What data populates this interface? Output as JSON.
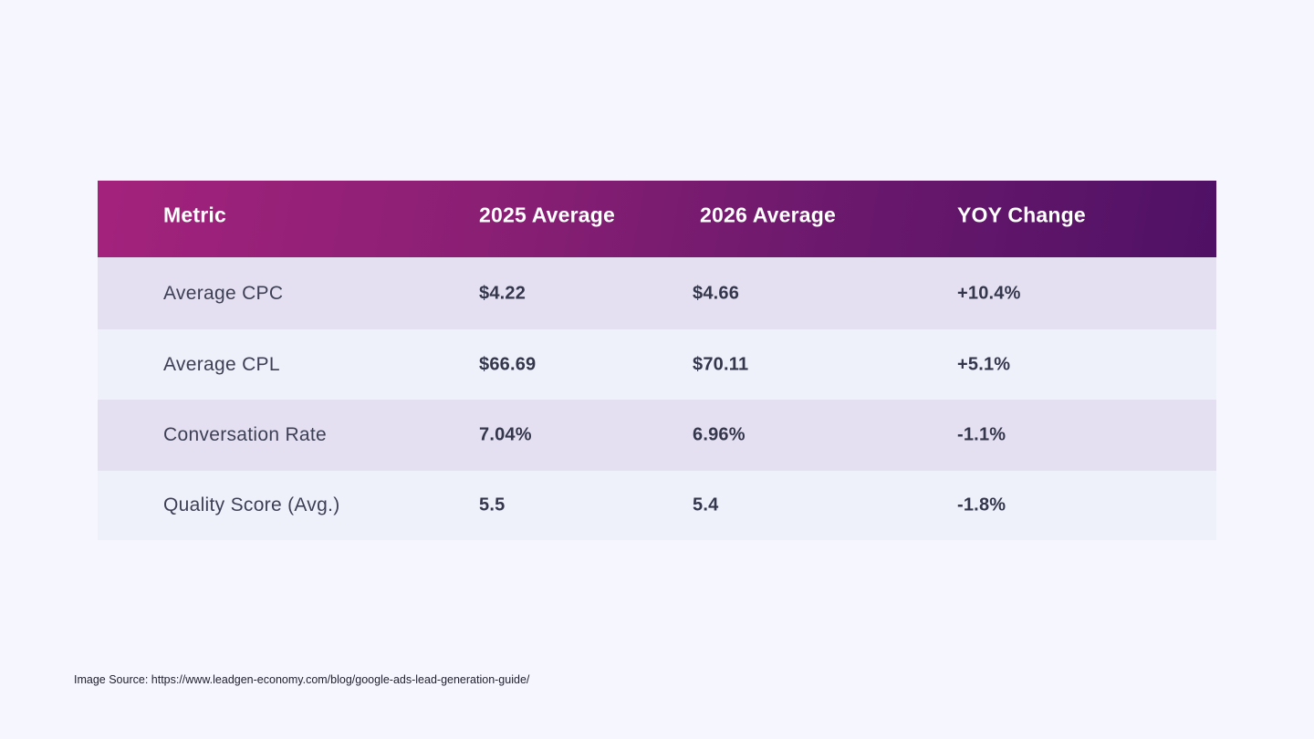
{
  "chart_data": {
    "type": "table",
    "columns": [
      "Metric",
      "2025 Average",
      "2026 Average",
      "YOY Change"
    ],
    "rows": [
      {
        "metric": "Average CPC",
        "y2025": "$4.22",
        "y2026": "$4.66",
        "yoy": "+10.4%"
      },
      {
        "metric": "Average CPL",
        "y2025": "$66.69",
        "y2026": "$70.11",
        "yoy": "+5.1%"
      },
      {
        "metric": "Conversation Rate",
        "y2025": "7.04%",
        "y2026": "6.96%",
        "yoy": "-1.1%"
      },
      {
        "metric": "Quality Score (Avg.)",
        "y2025": "5.5",
        "y2026": "5.4",
        "yoy": "-1.8%"
      }
    ],
    "colors": {
      "header_gradient_start": "#a3227c",
      "header_gradient_end": "#4f1165",
      "row_shade_a": "#e4e0f1",
      "row_shade_b": "#eef0fa",
      "background": "#f5f6fe"
    }
  },
  "source": "Image Source: https://www.leadgen-economy.com/blog/google-ads-lead-generation-guide/"
}
